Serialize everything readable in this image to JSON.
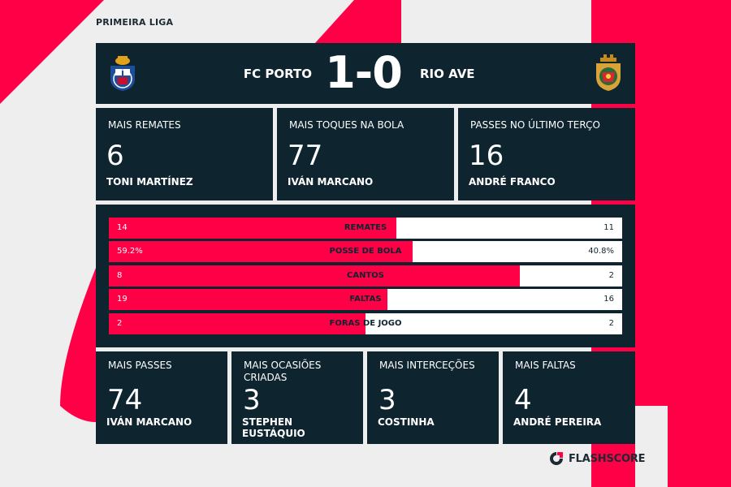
{
  "league": "PRIMEIRA LIGA",
  "match": {
    "home_team": "FC PORTO",
    "away_team": "RIO AVE",
    "score": "1-0",
    "home_crest_icon": "fc-porto-crest-icon",
    "away_crest_icon": "rio-ave-crest-icon"
  },
  "top_stats": [
    {
      "title": "MAIS REMATES",
      "value": "6",
      "player": "TONI MARTÍNEZ"
    },
    {
      "title": "MAIS TOQUES NA BOLA",
      "value": "77",
      "player": "IVÁN MARCANO"
    },
    {
      "title": "PASSES NO ÚLTIMO TERÇO",
      "value": "16",
      "player": "ANDRÉ FRANCO"
    }
  ],
  "comparison": [
    {
      "label": "REMATES",
      "home": "14",
      "away": "11",
      "home_share": 0.56
    },
    {
      "label": "POSSE DE BOLA",
      "home": "59.2%",
      "away": "40.8%",
      "home_share": 0.592
    },
    {
      "label": "CANTOS",
      "home": "8",
      "away": "2",
      "home_share": 0.8
    },
    {
      "label": "FALTAS",
      "home": "19",
      "away": "16",
      "home_share": 0.543
    },
    {
      "label": "FORAS DE JOGO",
      "home": "2",
      "away": "2",
      "home_share": 0.5
    }
  ],
  "bottom_stats": [
    {
      "title": "MAIS PASSES",
      "value": "74",
      "player": "IVÁN MARCANO"
    },
    {
      "title": "MAIS OCASIÕES CRIADAS",
      "value": "3",
      "player": "STEPHEN EUSTÁQUIO"
    },
    {
      "title": "MAIS INTERCEÇÕES",
      "value": "3",
      "player": "COSTINHA"
    },
    {
      "title": "MAIS FALTAS",
      "value": "4",
      "player": "ANDRÉ PEREIRA"
    }
  ],
  "brand": {
    "name": "FLASHSCORE",
    "icon": "flashscore-logo-icon"
  },
  "colors": {
    "accent": "#ff0046",
    "panel": "#0e2530",
    "background": "#eeeeef",
    "away_bar": "#ffffff"
  }
}
